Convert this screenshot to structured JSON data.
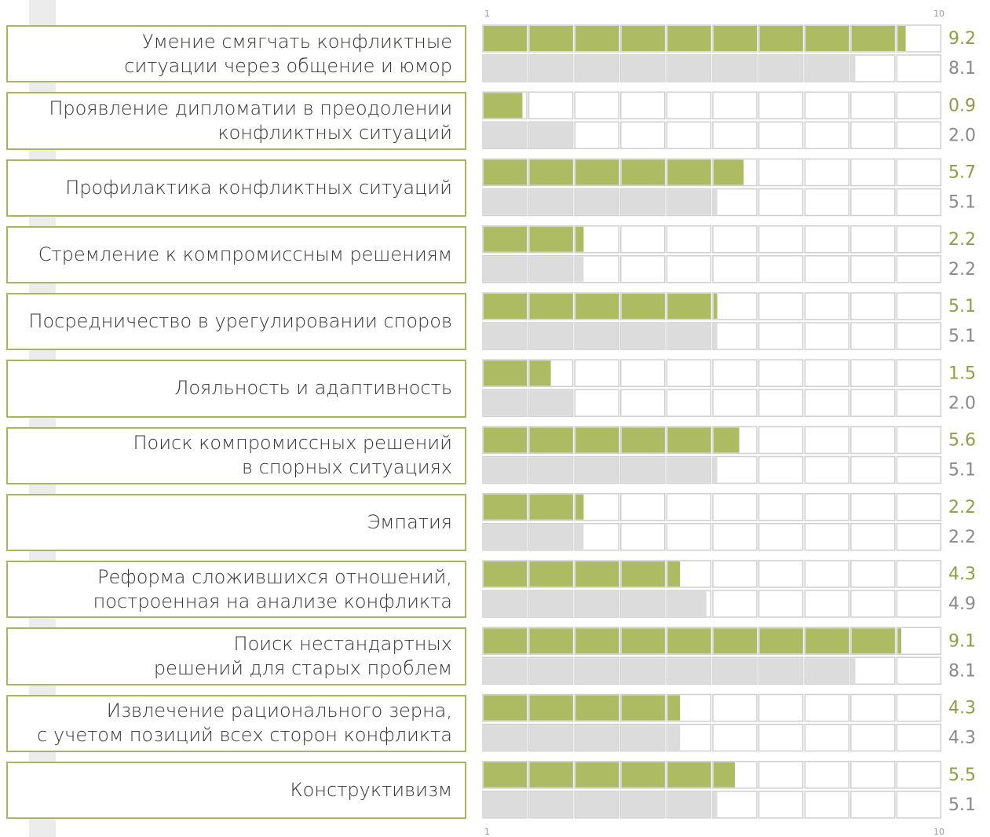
{
  "chart_data": {
    "type": "segmented-bar",
    "scale_labels": {
      "start": "1",
      "end": "10"
    },
    "xlim": [
      0,
      10
    ],
    "categories": [
      "Умение смягчать конфликтные\nситуации через общение и юмор",
      "Проявление дипломатии в преодолении\nконфликтных ситуаций",
      "Профилактика конфликтных ситуаций",
      "Стремление к компромиссным решениям",
      "Посредничество в урегулировании споров",
      "Лояльность и адаптивность",
      "Поиск компромиссных решений\nв спорных ситуациях",
      "Эмпатия",
      "Реформа сложившихся отношений,\nпостроенная на анализе конфликта",
      "Поиск нестандартных\nрешений для старых проблем",
      "Извлечение рационального зерна,\nс учетом позиций всех сторон конфликта",
      "Конструктивизм"
    ],
    "series": [
      {
        "color": "#adbb63",
        "label_color": "#8f9d45",
        "values": [
          9.2,
          0.9,
          5.7,
          2.2,
          5.1,
          1.5,
          5.6,
          2.2,
          4.3,
          9.1,
          4.3,
          5.5
        ],
        "value_labels": [
          "9.2",
          "0.9",
          "5.7",
          "2.2",
          "5.1",
          "1.5",
          "5.6",
          "2.2",
          "4.3",
          "9.1",
          "4.3",
          "5.5"
        ]
      },
      {
        "color": "#dcdcdc",
        "label_color": "#8a8a8a",
        "values": [
          8.1,
          2,
          5.1,
          2.2,
          5.1,
          2,
          5.1,
          2.2,
          4.9,
          8.1,
          4.3,
          5.1
        ],
        "value_labels": [
          "8.1",
          "2.0",
          "5.1",
          "2.2",
          "5.1",
          "2.0",
          "5.1",
          "2.2",
          "4.9",
          "8.1",
          "4.3",
          "5.1"
        ]
      }
    ]
  }
}
